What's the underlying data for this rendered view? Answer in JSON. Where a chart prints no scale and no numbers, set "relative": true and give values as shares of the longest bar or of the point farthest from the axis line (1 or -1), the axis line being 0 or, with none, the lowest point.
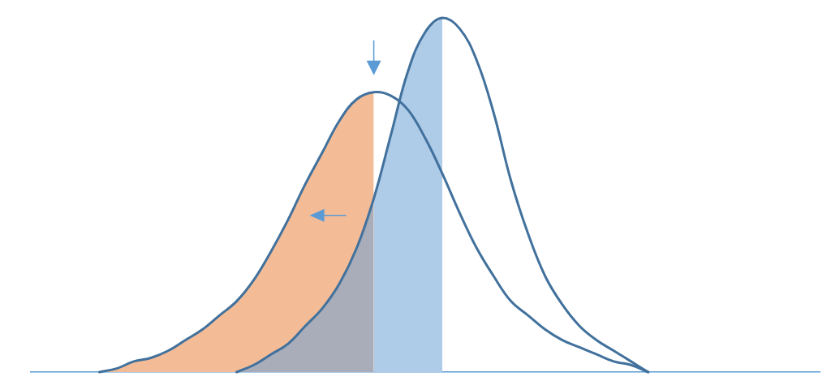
{
  "chart_data": {
    "type": "line",
    "relative": true,
    "categories": [
      null,
      null,
      null,
      null,
      null,
      null,
      null,
      null,
      null,
      null,
      null,
      null,
      null,
      null,
      null,
      null,
      null,
      null,
      null,
      null,
      null,
      null,
      null,
      null,
      null,
      null,
      null,
      null,
      null,
      null,
      null,
      null,
      null,
      null,
      null,
      null,
      null,
      null,
      null,
      null,
      null,
      null,
      null,
      null,
      null,
      null,
      null
    ],
    "series": [
      {
        "type": "area",
        "color": "#f4bc96",
        "values": [
          null,
          null,
          null,
          null,
          0,
          0.01,
          0.03,
          0.04,
          0.06,
          0.09,
          0.12,
          0.16,
          0.2,
          0.26,
          0.34,
          0.43,
          0.53,
          0.62,
          0.71,
          0.77,
          0.79,
          null,
          null,
          null,
          null,
          null,
          null,
          null,
          null,
          null,
          null,
          null,
          null,
          null,
          null,
          null,
          null,
          null,
          null,
          null,
          null,
          null,
          null,
          null,
          null,
          null,
          null
        ]
      },
      {
        "type": "area",
        "color": "#a8adb9",
        "values": [
          null,
          null,
          null,
          null,
          null,
          null,
          null,
          null,
          null,
          null,
          null,
          null,
          0,
          0.02,
          0.05,
          0.08,
          0.13,
          0.18,
          0.25,
          0.35,
          0.49,
          null,
          null,
          null,
          null,
          null,
          null,
          null,
          null,
          null,
          null,
          null,
          null,
          null,
          null,
          null,
          null,
          null,
          null,
          null,
          null,
          null,
          null,
          null,
          null,
          null,
          null
        ]
      },
      {
        "type": "area",
        "color": "#aecbe8",
        "values": [
          null,
          null,
          null,
          null,
          null,
          null,
          null,
          null,
          null,
          null,
          null,
          null,
          null,
          null,
          null,
          null,
          null,
          null,
          null,
          null,
          0.49,
          0.67,
          0.85,
          0.96,
          1,
          null,
          null,
          null,
          null,
          null,
          null,
          null,
          null,
          null,
          null,
          null,
          null,
          null,
          null,
          null,
          null,
          null,
          null,
          null,
          null,
          null,
          null
        ]
      },
      {
        "color": "#41719c",
        "values": [
          null,
          null,
          null,
          null,
          0,
          0.01,
          0.03,
          0.04,
          0.06,
          0.09,
          0.12,
          0.16,
          0.2,
          0.26,
          0.34,
          0.43,
          0.53,
          0.62,
          0.71,
          0.77,
          0.79,
          0.78,
          0.74,
          0.66,
          0.56,
          0.45,
          0.35,
          0.27,
          0.2,
          0.16,
          0.12,
          0.09,
          0.07,
          0.05,
          0.03,
          0.02,
          0,
          null,
          null,
          null,
          null,
          null,
          null,
          null,
          null,
          null,
          null
        ]
      },
      {
        "color": "#41719c",
        "values": [
          null,
          null,
          null,
          null,
          null,
          null,
          null,
          null,
          null,
          null,
          null,
          null,
          0,
          0.02,
          0.05,
          0.08,
          0.13,
          0.18,
          0.25,
          0.35,
          0.49,
          0.67,
          0.85,
          0.96,
          1,
          0.97,
          0.88,
          0.73,
          0.54,
          0.39,
          0.27,
          0.19,
          0.13,
          0.09,
          0.06,
          0.03,
          0,
          null,
          null,
          null,
          null,
          null,
          null,
          null,
          null,
          null,
          null
        ]
      }
    ]
  }
}
